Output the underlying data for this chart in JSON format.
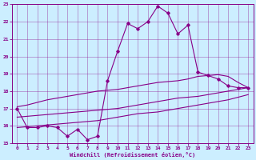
{
  "xlabel": "Windchill (Refroidissement éolien,°C)",
  "background_color": "#cceeff",
  "line_color": "#880088",
  "xlim": [
    -0.5,
    23.5
  ],
  "ylim": [
    15,
    23
  ],
  "xticks": [
    0,
    1,
    2,
    3,
    4,
    5,
    6,
    7,
    8,
    9,
    10,
    11,
    12,
    13,
    14,
    15,
    16,
    17,
    18,
    19,
    20,
    21,
    22,
    23
  ],
  "yticks": [
    15,
    16,
    17,
    18,
    19,
    20,
    21,
    22,
    23
  ],
  "main_y": [
    17.0,
    15.9,
    15.9,
    16.0,
    15.9,
    15.4,
    15.8,
    15.2,
    15.4,
    18.6,
    20.3,
    21.9,
    21.6,
    22.0,
    22.9,
    22.5,
    21.3,
    21.8,
    19.1,
    18.9,
    18.7,
    18.3,
    18.2,
    18.2
  ],
  "upper_y": [
    17.1,
    17.2,
    17.35,
    17.5,
    17.6,
    17.7,
    17.8,
    17.9,
    18.0,
    18.05,
    18.1,
    18.2,
    18.3,
    18.4,
    18.5,
    18.55,
    18.6,
    18.7,
    18.85,
    18.9,
    18.95,
    18.85,
    18.5,
    18.2
  ],
  "mid_y": [
    16.5,
    16.55,
    16.6,
    16.65,
    16.7,
    16.75,
    16.8,
    16.85,
    16.9,
    16.95,
    17.0,
    17.1,
    17.2,
    17.3,
    17.4,
    17.5,
    17.6,
    17.65,
    17.7,
    17.8,
    17.9,
    18.0,
    18.1,
    18.2
  ],
  "lower_y": [
    15.9,
    15.95,
    16.0,
    16.05,
    16.1,
    16.15,
    16.2,
    16.25,
    16.3,
    16.4,
    16.5,
    16.6,
    16.7,
    16.75,
    16.8,
    16.9,
    17.0,
    17.1,
    17.2,
    17.3,
    17.4,
    17.5,
    17.65,
    17.8
  ]
}
